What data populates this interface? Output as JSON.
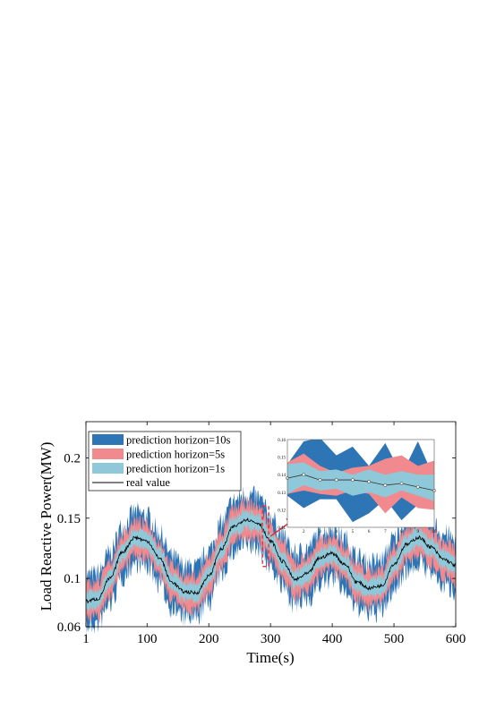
{
  "chart_data": {
    "type": "area",
    "xlabel": "Time(s)",
    "ylabel": "Load Reactive Power(MW)",
    "xlim": [
      1,
      600
    ],
    "ylim": [
      0.06,
      0.23
    ],
    "xticks": [
      "1",
      "100",
      "200",
      "300",
      "400",
      "500",
      "600"
    ],
    "yticks": [
      "0.06",
      "0.1",
      "0.15",
      "0.2"
    ],
    "legend_position": "top-left",
    "grid": false,
    "series": [
      {
        "name": "prediction horizon=10s",
        "kind": "band",
        "color": "#2e75b6",
        "halfwidth": 0.021
      },
      {
        "name": "prediction horizon=5s",
        "kind": "band",
        "color": "#f08a8e",
        "halfwidth": 0.014
      },
      {
        "name": "prediction horizon=1s",
        "kind": "band",
        "color": "#8fc8d8",
        "halfwidth": 0.007
      },
      {
        "name": "real value",
        "kind": "line",
        "color": "#000000"
      }
    ],
    "real_value": {
      "x": [
        1,
        20,
        40,
        60,
        80,
        100,
        120,
        140,
        160,
        180,
        200,
        220,
        240,
        260,
        280,
        300,
        320,
        340,
        360,
        380,
        400,
        420,
        440,
        460,
        480,
        500,
        520,
        540,
        560,
        580,
        600
      ],
      "y": [
        0.081,
        0.083,
        0.1,
        0.122,
        0.134,
        0.131,
        0.117,
        0.097,
        0.089,
        0.088,
        0.102,
        0.124,
        0.143,
        0.149,
        0.146,
        0.131,
        0.114,
        0.099,
        0.104,
        0.117,
        0.121,
        0.112,
        0.097,
        0.092,
        0.094,
        0.112,
        0.128,
        0.134,
        0.126,
        0.116,
        0.111
      ]
    },
    "zoom_box": {
      "x_range": [
        287,
        297
      ],
      "y_range": [
        0.11,
        0.16
      ]
    },
    "inset": {
      "xlim": [
        1,
        10
      ],
      "ylim": [
        0.11,
        0.16
      ],
      "xticks": [
        "2",
        "3",
        "4",
        "5",
        "6",
        "7",
        "8",
        "9",
        "10"
      ],
      "yticks": [
        "0.11",
        "0.12",
        "0.13",
        "0.14",
        "0.15",
        "0.16"
      ],
      "real_x": [
        1,
        2,
        3,
        4,
        5,
        6,
        7,
        8,
        9,
        10
      ],
      "real_y": [
        0.138,
        0.14,
        0.137,
        0.137,
        0.137,
        0.136,
        0.134,
        0.135,
        0.133,
        0.131
      ],
      "band10_upper": [
        0.146,
        0.159,
        0.161,
        0.151,
        0.156,
        0.145,
        0.158,
        0.14,
        0.159,
        0.138
      ],
      "band10_lower": [
        0.128,
        0.121,
        0.126,
        0.126,
        0.113,
        0.118,
        0.126,
        0.114,
        0.123,
        0.12
      ],
      "band5_upper": [
        0.147,
        0.152,
        0.145,
        0.141,
        0.144,
        0.145,
        0.149,
        0.151,
        0.145,
        0.148
      ],
      "band5_lower": [
        0.129,
        0.131,
        0.129,
        0.128,
        0.131,
        0.129,
        0.118,
        0.127,
        0.121,
        0.12
      ],
      "band1_upper": [
        0.146,
        0.147,
        0.142,
        0.143,
        0.14,
        0.143,
        0.14,
        0.142,
        0.14,
        0.14
      ],
      "band1_lower": [
        0.129,
        0.134,
        0.131,
        0.132,
        0.128,
        0.13,
        0.127,
        0.131,
        0.128,
        0.125
      ]
    }
  }
}
